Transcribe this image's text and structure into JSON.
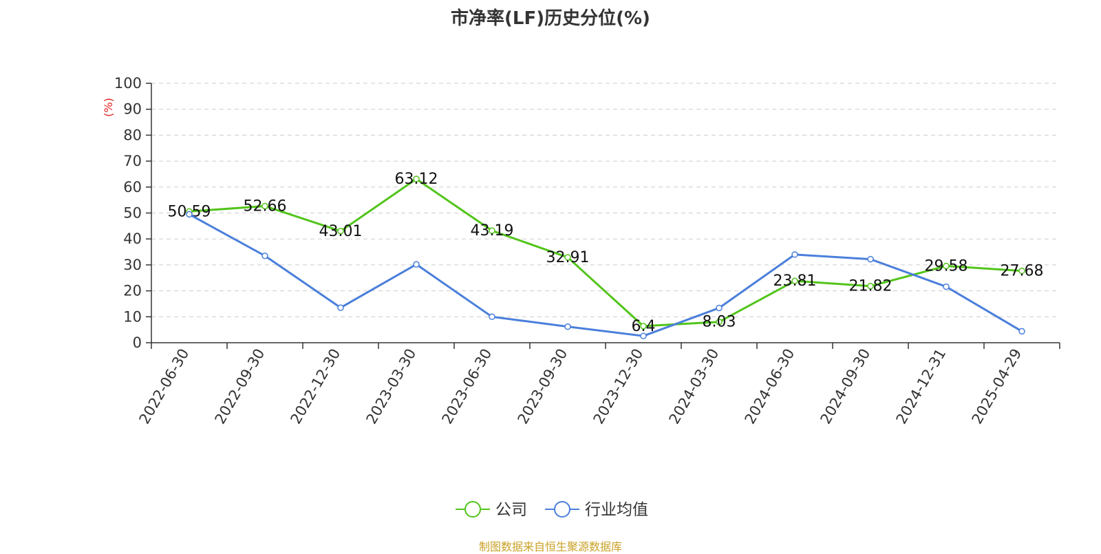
{
  "chart_data": {
    "type": "line",
    "title": "市净率(LF)历史分位(%)",
    "ylabel": "(%)",
    "xlabel": "",
    "ylim": [
      0,
      100
    ],
    "yticks": [
      0,
      10,
      20,
      30,
      40,
      50,
      60,
      70,
      80,
      90,
      100
    ],
    "categories": [
      "2022-06-30",
      "2022-09-30",
      "2022-12-30",
      "2023-03-30",
      "2023-06-30",
      "2023-09-30",
      "2023-12-30",
      "2024-03-30",
      "2024-06-30",
      "2024-09-30",
      "2024-12-31",
      "2025-04-29"
    ],
    "grid": "horizontal dashed",
    "legend_position": "bottom-center",
    "series": [
      {
        "name": "公司",
        "color": "#52c41a",
        "values": [
          50.59,
          52.66,
          43.01,
          63.12,
          43.19,
          32.91,
          6.4,
          8.03,
          23.81,
          21.82,
          29.58,
          27.68
        ],
        "labels": [
          "50.59",
          "52.66",
          "43.01",
          "63.12",
          "43.19",
          "32.91",
          "6.4",
          "8.03",
          "23.81",
          "21.82",
          "29.58",
          "27.68"
        ]
      },
      {
        "name": "行业均值",
        "color": "#4a7fdb",
        "values": [
          49.5,
          33.5,
          13.5,
          30.2,
          10.0,
          6.2,
          2.6,
          13.4,
          34.0,
          32.2,
          21.6,
          4.4
        ]
      }
    ]
  },
  "footer": {
    "source": "制图数据来自恒生聚源数据库"
  }
}
